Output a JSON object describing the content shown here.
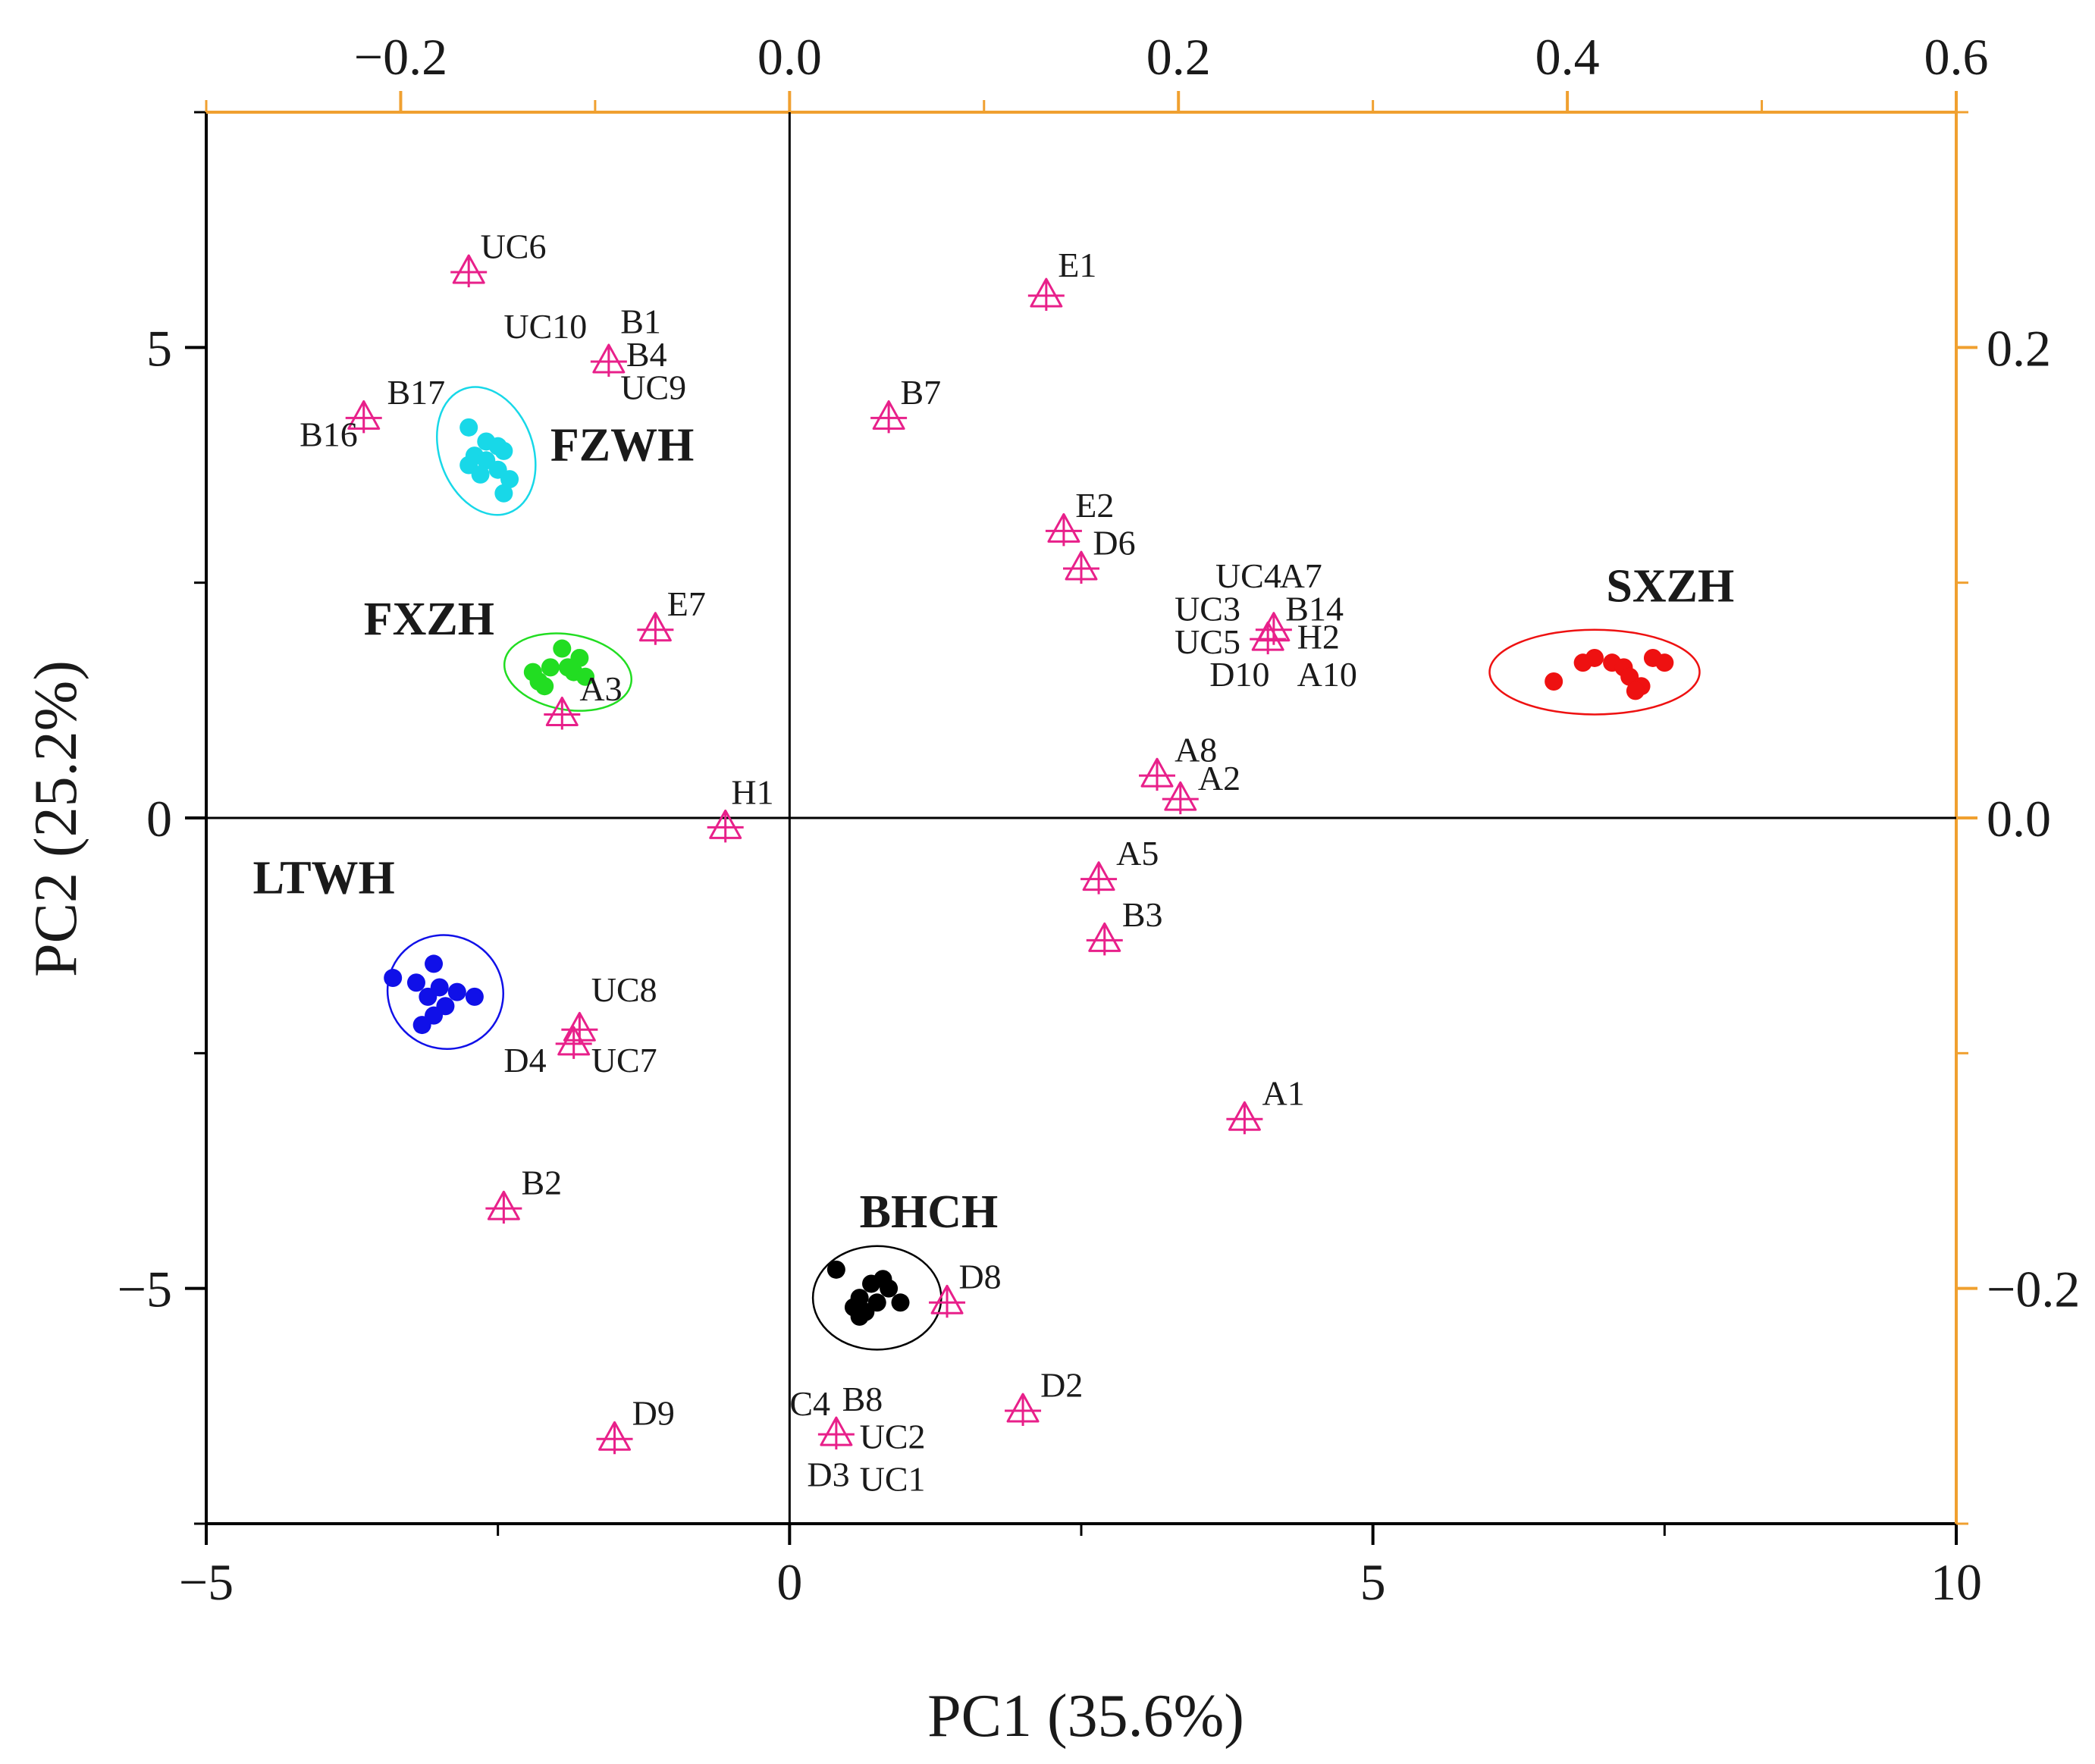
{
  "chart_data": {
    "type": "scatter",
    "title": "",
    "xlabel": "PC1 (35.6%)",
    "ylabel": "PC2 (25.2%)",
    "xlim": [
      -5,
      10
    ],
    "ylim": [
      -7.5,
      7.5
    ],
    "xticks": [
      -5,
      0,
      5,
      10
    ],
    "yticks": [
      -5,
      0,
      5
    ],
    "x_tick_labels": [
      "−5",
      "0",
      "5",
      "10"
    ],
    "y_tick_labels": [
      "−5",
      "0",
      "5"
    ],
    "top_axis": {
      "lim": [
        -0.3,
        0.6
      ],
      "ticks": [
        -0.2,
        0.0,
        0.2,
        0.4,
        0.6
      ],
      "tick_labels": [
        "−0.2",
        "0.0",
        "0.2",
        "0.4",
        "0.6"
      ]
    },
    "right_axis": {
      "lim": [
        -0.3,
        0.3
      ],
      "ticks": [
        -0.2,
        0.0,
        0.2
      ],
      "tick_labels": [
        "−0.2",
        "0.0",
        "0.2"
      ]
    },
    "colors": {
      "axis": "#000000",
      "secondary_axis": "#f0a030",
      "loading": "#e8208a",
      "FZWH": "#18d8e8",
      "FXZH": "#22dd22",
      "LTWH": "#1010e8",
      "BHCH": "#000000",
      "SXZH": "#ee1111"
    },
    "groups": [
      {
        "name": "FZWH",
        "color": "#18d8e8",
        "ellipse": {
          "cx": -2.6,
          "cy": 3.9,
          "rx": 0.4,
          "ry": 0.7,
          "angle": 20
        },
        "label": {
          "x": -2.05,
          "y": 3.8
        },
        "points": [
          [
            -2.75,
            4.15
          ],
          [
            -2.6,
            4.0
          ],
          [
            -2.5,
            3.95
          ],
          [
            -2.45,
            3.9
          ],
          [
            -2.7,
            3.85
          ],
          [
            -2.6,
            3.8
          ],
          [
            -2.75,
            3.75
          ],
          [
            -2.5,
            3.7
          ],
          [
            -2.4,
            3.6
          ],
          [
            -2.65,
            3.65
          ],
          [
            -2.45,
            3.45
          ]
        ]
      },
      {
        "name": "FXZH",
        "color": "#22dd22",
        "ellipse": {
          "cx": -1.9,
          "cy": 1.55,
          "rx": 0.55,
          "ry": 0.4,
          "angle": -10
        },
        "label": {
          "x": -3.65,
          "y": 1.95
        },
        "points": [
          [
            -1.95,
            1.8
          ],
          [
            -1.8,
            1.7
          ],
          [
            -2.05,
            1.6
          ],
          [
            -1.85,
            1.55
          ],
          [
            -2.2,
            1.55
          ],
          [
            -2.15,
            1.45
          ],
          [
            -1.75,
            1.5
          ],
          [
            -2.1,
            1.4
          ],
          [
            -1.9,
            1.6
          ]
        ]
      },
      {
        "name": "LTWH",
        "color": "#1010e8",
        "ellipse": {
          "cx": -2.95,
          "cy": -1.85,
          "rx": 0.5,
          "ry": 0.6,
          "angle": -30
        },
        "label": {
          "x": -4.6,
          "y": -0.8
        },
        "points": [
          [
            -3.4,
            -1.7
          ],
          [
            -3.05,
            -1.55
          ],
          [
            -3.2,
            -1.75
          ],
          [
            -3.0,
            -1.8
          ],
          [
            -2.85,
            -1.85
          ],
          [
            -3.1,
            -1.9
          ],
          [
            -2.7,
            -1.9
          ],
          [
            -2.95,
            -2.0
          ],
          [
            -3.05,
            -2.1
          ],
          [
            -3.15,
            -2.2
          ]
        ]
      },
      {
        "name": "BHCH",
        "color": "#000000",
        "ellipse": {
          "cx": 0.75,
          "cy": -5.1,
          "rx": 0.55,
          "ry": 0.55,
          "angle": 0
        },
        "label": {
          "x": 0.6,
          "y": -4.35
        },
        "points": [
          [
            0.4,
            -4.8
          ],
          [
            0.7,
            -4.95
          ],
          [
            0.8,
            -4.9
          ],
          [
            0.85,
            -5.0
          ],
          [
            0.6,
            -5.1
          ],
          [
            0.75,
            -5.15
          ],
          [
            0.95,
            -5.15
          ],
          [
            0.55,
            -5.2
          ],
          [
            0.6,
            -5.3
          ],
          [
            0.65,
            -5.25
          ]
        ]
      },
      {
        "name": "SXZH",
        "color": "#ee1111",
        "ellipse": {
          "cx": 6.9,
          "cy": 1.55,
          "rx": 0.9,
          "ry": 0.45,
          "angle": 0
        },
        "label": {
          "x": 7.0,
          "y": 2.3
        },
        "points": [
          [
            6.55,
            1.45
          ],
          [
            6.8,
            1.65
          ],
          [
            6.9,
            1.7
          ],
          [
            7.05,
            1.65
          ],
          [
            7.15,
            1.6
          ],
          [
            7.2,
            1.5
          ],
          [
            7.3,
            1.4
          ],
          [
            7.25,
            1.35
          ],
          [
            7.4,
            1.7
          ],
          [
            7.5,
            1.65
          ]
        ]
      }
    ],
    "loadings": [
      {
        "x": -2.75,
        "y": 5.8
      },
      {
        "x": -1.55,
        "y": 4.85
      },
      {
        "x": -3.65,
        "y": 4.25
      },
      {
        "x": 0.85,
        "y": 4.25
      },
      {
        "x": 2.2,
        "y": 5.55
      },
      {
        "x": 2.35,
        "y": 3.05
      },
      {
        "x": 2.5,
        "y": 2.65
      },
      {
        "x": 4.15,
        "y": 2.0
      },
      {
        "x": 4.1,
        "y": 1.9
      },
      {
        "x": -1.15,
        "y": 2.0
      },
      {
        "x": -1.95,
        "y": 1.1
      },
      {
        "x": -0.55,
        "y": -0.1
      },
      {
        "x": 3.15,
        "y": 0.45
      },
      {
        "x": 3.35,
        "y": 0.2
      },
      {
        "x": 2.65,
        "y": -0.65
      },
      {
        "x": 2.7,
        "y": -1.3
      },
      {
        "x": -1.8,
        "y": -2.25
      },
      {
        "x": -1.85,
        "y": -2.4
      },
      {
        "x": 3.9,
        "y": -3.2
      },
      {
        "x": -2.45,
        "y": -4.15
      },
      {
        "x": 1.35,
        "y": -5.15
      },
      {
        "x": 2.0,
        "y": -6.3
      },
      {
        "x": 0.4,
        "y": -6.55
      },
      {
        "x": -1.5,
        "y": -6.6
      }
    ],
    "loading_labels": [
      {
        "text": "UC6",
        "x": -2.65,
        "y": 5.95
      },
      {
        "text": "UC10",
        "x": -2.45,
        "y": 5.1
      },
      {
        "text": "B1",
        "x": -1.45,
        "y": 5.15
      },
      {
        "text": "B4",
        "x": -1.4,
        "y": 4.8
      },
      {
        "text": "UC9",
        "x": -1.45,
        "y": 4.45
      },
      {
        "text": "B17",
        "x": -3.45,
        "y": 4.4
      },
      {
        "text": "B16",
        "x": -4.2,
        "y": 3.95
      },
      {
        "text": "B7",
        "x": 0.95,
        "y": 4.4
      },
      {
        "text": "E1",
        "x": 2.3,
        "y": 5.75
      },
      {
        "text": "E2",
        "x": 2.45,
        "y": 3.2
      },
      {
        "text": "D6",
        "x": 2.6,
        "y": 2.8
      },
      {
        "text": "UC4",
        "x": 3.65,
        "y": 2.45
      },
      {
        "text": "A7",
        "x": 4.2,
        "y": 2.45
      },
      {
        "text": "UC3",
        "x": 3.3,
        "y": 2.1
      },
      {
        "text": "B14",
        "x": 4.25,
        "y": 2.1
      },
      {
        "text": "UC5",
        "x": 3.3,
        "y": 1.75
      },
      {
        "text": "H2",
        "x": 4.35,
        "y": 1.8
      },
      {
        "text": "D10",
        "x": 3.6,
        "y": 1.4
      },
      {
        "text": "A10",
        "x": 4.35,
        "y": 1.4
      },
      {
        "text": "E7",
        "x": -1.05,
        "y": 2.15
      },
      {
        "text": "A3",
        "x": -1.8,
        "y": 1.25
      },
      {
        "text": "H1",
        "x": -0.5,
        "y": 0.15
      },
      {
        "text": "A8",
        "x": 3.3,
        "y": 0.6
      },
      {
        "text": "A2",
        "x": 3.5,
        "y": 0.3
      },
      {
        "text": "A5",
        "x": 2.8,
        "y": -0.5
      },
      {
        "text": "B3",
        "x": 2.85,
        "y": -1.15
      },
      {
        "text": "UC8",
        "x": -1.7,
        "y": -1.95
      },
      {
        "text": "D4",
        "x": -2.45,
        "y": -2.7
      },
      {
        "text": "UC7",
        "x": -1.7,
        "y": -2.7
      },
      {
        "text": "A1",
        "x": 4.05,
        "y": -3.05
      },
      {
        "text": "B2",
        "x": -2.3,
        "y": -4.0
      },
      {
        "text": "D8",
        "x": 1.45,
        "y": -5.0
      },
      {
        "text": "D2",
        "x": 2.15,
        "y": -6.15
      },
      {
        "text": "C4",
        "x": 0.0,
        "y": -6.35
      },
      {
        "text": "B8",
        "x": 0.45,
        "y": -6.3
      },
      {
        "text": "UC2",
        "x": 0.6,
        "y": -6.7
      },
      {
        "text": "D3",
        "x": 0.15,
        "y": -7.1
      },
      {
        "text": "UC1",
        "x": 0.6,
        "y": -7.15
      },
      {
        "text": "D9",
        "x": -1.35,
        "y": -6.45
      }
    ]
  }
}
